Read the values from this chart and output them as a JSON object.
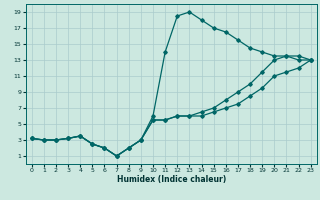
{
  "xlabel": "Humidex (Indice chaleur)",
  "bg_color": "#cce8e0",
  "grid_color": "#aacccc",
  "line_color": "#006666",
  "xlim": [
    -0.5,
    23.5
  ],
  "ylim": [
    0,
    20
  ],
  "xticks": [
    0,
    1,
    2,
    3,
    4,
    5,
    6,
    7,
    8,
    9,
    10,
    11,
    12,
    13,
    14,
    15,
    16,
    17,
    18,
    19,
    20,
    21,
    22,
    23
  ],
  "yticks": [
    1,
    3,
    5,
    7,
    9,
    11,
    13,
    15,
    17,
    19
  ],
  "curve1_x": [
    0,
    1,
    2,
    3,
    4,
    5,
    6,
    7,
    8,
    9,
    10,
    11,
    12,
    13,
    14,
    15,
    16,
    17,
    18,
    19,
    20,
    21,
    22,
    23
  ],
  "curve1_y": [
    3.2,
    3.0,
    3.0,
    3.2,
    3.5,
    2.5,
    2.0,
    1.0,
    2.0,
    3.0,
    6.0,
    14.0,
    18.5,
    19.0,
    18.0,
    17.0,
    16.5,
    15.5,
    14.5,
    14.0,
    13.5,
    13.5,
    13.0,
    13.0
  ],
  "curve2_x": [
    0,
    1,
    2,
    3,
    4,
    5,
    6,
    7,
    8,
    9,
    10,
    11,
    12,
    13,
    14,
    15,
    16,
    17,
    18,
    19,
    20,
    21,
    22,
    23
  ],
  "curve2_y": [
    3.2,
    3.0,
    3.0,
    3.2,
    3.5,
    2.5,
    2.0,
    1.0,
    2.0,
    3.0,
    5.5,
    5.5,
    6.0,
    6.0,
    6.5,
    7.0,
    8.0,
    9.0,
    10.0,
    11.5,
    13.0,
    13.5,
    13.5,
    13.0
  ],
  "curve3_x": [
    0,
    1,
    2,
    3,
    4,
    5,
    6,
    7,
    8,
    9,
    10,
    11,
    12,
    13,
    14,
    15,
    16,
    17,
    18,
    19,
    20,
    21,
    22,
    23
  ],
  "curve3_y": [
    3.2,
    3.0,
    3.0,
    3.2,
    3.5,
    2.5,
    2.0,
    1.0,
    2.0,
    3.0,
    5.5,
    5.5,
    6.0,
    6.0,
    6.0,
    6.5,
    7.0,
    7.5,
    8.5,
    9.5,
    11.0,
    11.5,
    12.0,
    13.0
  ]
}
